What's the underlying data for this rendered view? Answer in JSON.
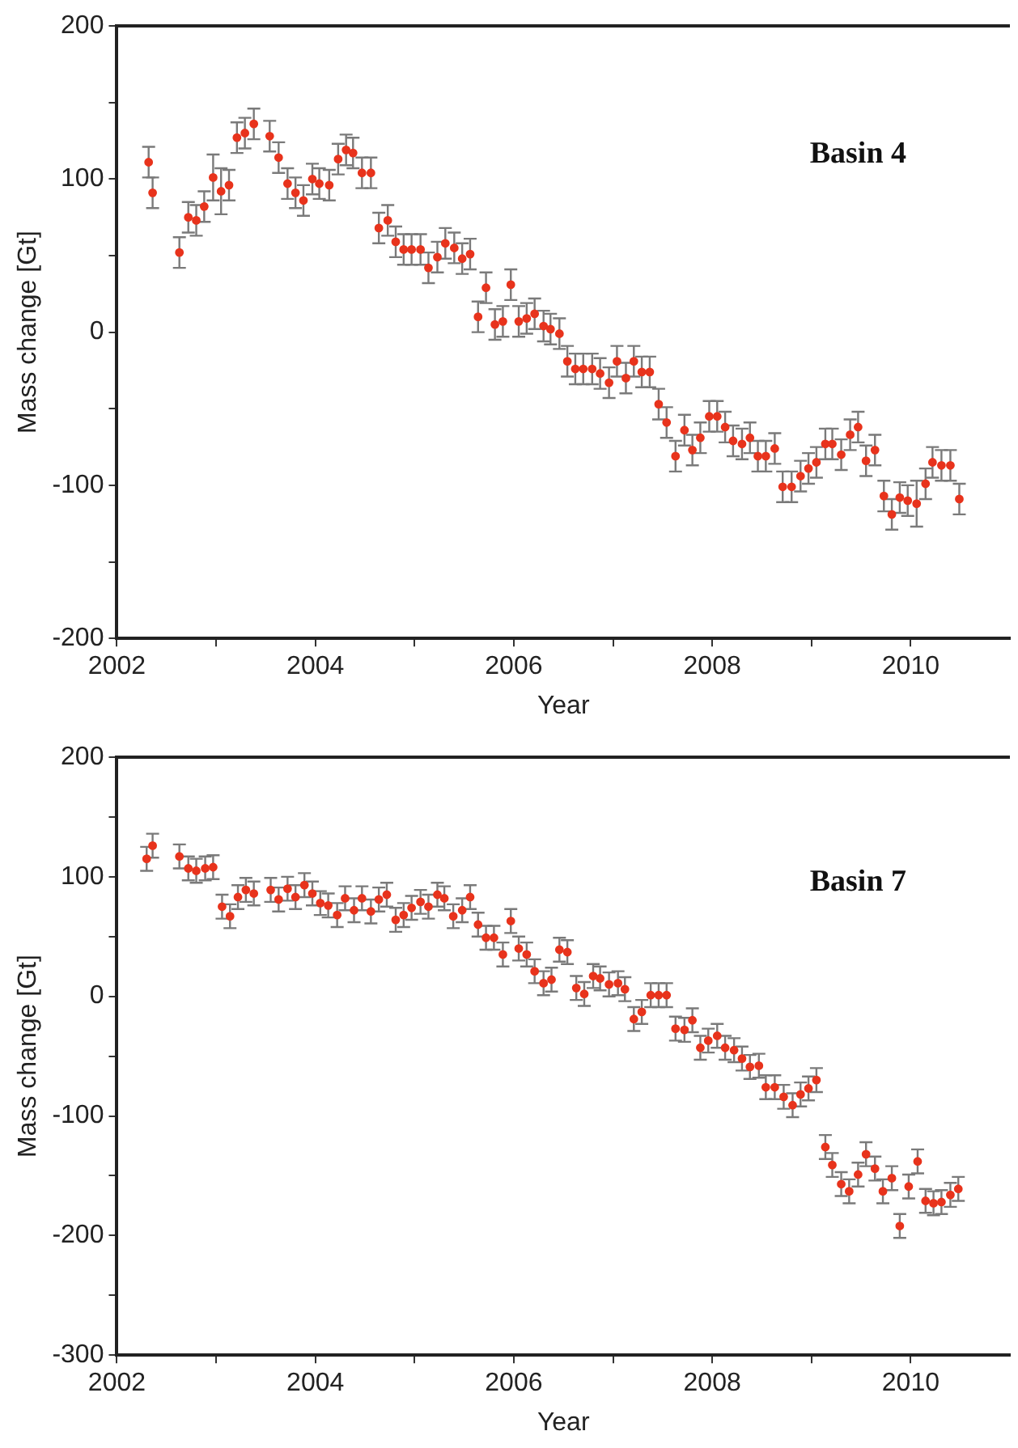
{
  "chart_data": [
    {
      "type": "scatter",
      "annotations": [
        "Basin 4"
      ],
      "xlabel": "Year",
      "ylabel": "Mass change [Gt]",
      "color": "#e8331c",
      "marker": "circle",
      "xlim": [
        2002,
        2011
      ],
      "xticks": [
        2002,
        {
          "value": 2003,
          "label": null
        },
        2004,
        {
          "value": 2005,
          "label": null
        },
        2006,
        {
          "value": 2007,
          "label": null
        },
        2008,
        {
          "value": 2009,
          "label": null
        },
        2010
      ],
      "ylim": [
        -200,
        200
      ],
      "yticks": [
        -200,
        {
          "value": -150,
          "label": null
        },
        -100,
        {
          "value": -50,
          "label": null
        },
        0,
        {
          "value": 50,
          "label": null
        },
        100,
        {
          "value": 150,
          "label": null
        },
        200
      ],
      "x": [
        2002.32,
        2002.36,
        2002.63,
        2002.72,
        2002.8,
        2002.88,
        2002.97,
        2003.05,
        2003.13,
        2003.21,
        2003.29,
        2003.38,
        2003.54,
        2003.63,
        2003.72,
        2003.8,
        2003.88,
        2003.97,
        2004.04,
        2004.14,
        2004.23,
        2004.31,
        2004.38,
        2004.47,
        2004.56,
        2004.64,
        2004.73,
        2004.81,
        2004.89,
        2004.97,
        2005.06,
        2005.14,
        2005.23,
        2005.31,
        2005.4,
        2005.48,
        2005.56,
        2005.64,
        2005.72,
        2005.81,
        2005.89,
        2005.97,
        2006.05,
        2006.13,
        2006.21,
        2006.3,
        2006.37,
        2006.46,
        2006.54,
        2006.62,
        2006.7,
        2006.79,
        2006.87,
        2006.96,
        2007.04,
        2007.13,
        2007.21,
        2007.29,
        2007.37,
        2007.46,
        2007.54,
        2007.63,
        2007.72,
        2007.8,
        2007.88,
        2007.97,
        2008.05,
        2008.13,
        2008.21,
        2008.3,
        2008.38,
        2008.46,
        2008.54,
        2008.63,
        2008.71,
        2008.8,
        2008.89,
        2008.97,
        2009.05,
        2009.14,
        2009.21,
        2009.3,
        2009.39,
        2009.47,
        2009.55,
        2009.64,
        2009.73,
        2009.81,
        2009.89,
        2009.97,
        2010.06,
        2010.15,
        2010.22,
        2010.31,
        2010.4,
        2010.49
      ],
      "values": [
        111,
        91,
        52,
        75,
        73,
        82,
        101,
        92,
        96,
        127,
        130,
        136,
        128,
        114,
        97,
        91,
        86,
        100,
        97,
        96,
        113,
        119,
        117,
        104,
        104,
        68,
        73,
        59,
        54,
        54,
        54,
        42,
        49,
        58,
        55,
        48,
        51,
        10,
        29,
        5,
        7,
        31,
        7,
        9,
        12,
        4,
        2,
        -1,
        -19,
        -24,
        -24,
        -24,
        -27,
        -33,
        -19,
        -30,
        -19,
        -26,
        -26,
        -47,
        -59,
        -81,
        -64,
        -77,
        -69,
        -55,
        -55,
        -62,
        -71,
        -73,
        -69,
        -81,
        -81,
        -76,
        -101,
        -101,
        -94,
        -89,
        -85,
        -73,
        -73,
        -80,
        -67,
        -62,
        -84,
        -77,
        -107,
        -119,
        -108,
        -110,
        -112,
        -99,
        -85,
        -87,
        -87,
        -109
      ],
      "errors": [
        10,
        10,
        10,
        10,
        10,
        10,
        15,
        15,
        10,
        10,
        10,
        10,
        10,
        10,
        10,
        10,
        10,
        10,
        10,
        10,
        10,
        10,
        10,
        10,
        10,
        10,
        10,
        10,
        10,
        10,
        10,
        10,
        10,
        10,
        10,
        10,
        10,
        10,
        10,
        10,
        10,
        10,
        10,
        10,
        10,
        10,
        10,
        10,
        10,
        10,
        10,
        10,
        10,
        10,
        10,
        10,
        10,
        10,
        10,
        10,
        10,
        10,
        10,
        10,
        10,
        10,
        10,
        10,
        10,
        10,
        10,
        10,
        10,
        10,
        10,
        10,
        10,
        10,
        10,
        10,
        10,
        10,
        10,
        10,
        10,
        10,
        10,
        10,
        10,
        10,
        15,
        10,
        10,
        10,
        10,
        10
      ]
    },
    {
      "type": "scatter",
      "annotations": [
        "Basin 7"
      ],
      "xlabel": "Year",
      "ylabel": "Mass change [Gt]",
      "color": "#e8331c",
      "marker": "circle",
      "xlim": [
        2002,
        2011
      ],
      "xticks": [
        2002,
        {
          "value": 2003,
          "label": null
        },
        2004,
        {
          "value": 2005,
          "label": null
        },
        2006,
        {
          "value": 2007,
          "label": null
        },
        2008,
        {
          "value": 2009,
          "label": null
        },
        2010
      ],
      "ylim": [
        -300,
        200
      ],
      "yticks": [
        -300,
        {
          "value": -250,
          "label": null
        },
        -200,
        {
          "value": -150,
          "label": null
        },
        -100,
        {
          "value": -50,
          "label": null
        },
        0,
        {
          "value": 50,
          "label": null
        },
        100,
        {
          "value": 150,
          "label": null
        },
        200
      ],
      "x": [
        2002.3,
        2002.36,
        2002.63,
        2002.72,
        2002.8,
        2002.89,
        2002.97,
        2003.06,
        2003.14,
        2003.22,
        2003.3,
        2003.38,
        2003.55,
        2003.63,
        2003.72,
        2003.8,
        2003.89,
        2003.97,
        2004.05,
        2004.13,
        2004.22,
        2004.3,
        2004.39,
        2004.47,
        2004.56,
        2004.64,
        2004.72,
        2004.81,
        2004.89,
        2004.97,
        2005.06,
        2005.14,
        2005.23,
        2005.3,
        2005.39,
        2005.48,
        2005.56,
        2005.64,
        2005.72,
        2005.8,
        2005.89,
        2005.97,
        2006.05,
        2006.13,
        2006.21,
        2006.3,
        2006.38,
        2006.46,
        2006.54,
        2006.63,
        2006.71,
        2006.8,
        2006.87,
        2006.96,
        2007.05,
        2007.12,
        2007.21,
        2007.29,
        2007.38,
        2007.46,
        2007.54,
        2007.63,
        2007.72,
        2007.8,
        2007.88,
        2007.96,
        2008.05,
        2008.13,
        2008.22,
        2008.3,
        2008.38,
        2008.47,
        2008.54,
        2008.63,
        2008.72,
        2008.81,
        2008.89,
        2008.97,
        2009.05,
        2009.14,
        2009.21,
        2009.3,
        2009.38,
        2009.47,
        2009.55,
        2009.64,
        2009.72,
        2009.81,
        2009.89,
        2009.98,
        2010.07,
        2010.15,
        2010.23,
        2010.31,
        2010.4,
        2010.48
      ],
      "values": [
        115,
        126,
        117,
        107,
        105,
        107,
        108,
        75,
        67,
        83,
        89,
        86,
        89,
        81,
        90,
        83,
        93,
        86,
        78,
        76,
        68,
        82,
        72,
        82,
        71,
        81,
        85,
        64,
        68,
        74,
        79,
        75,
        85,
        82,
        67,
        72,
        83,
        60,
        49,
        49,
        35,
        63,
        40,
        35,
        21,
        11,
        14,
        39,
        37,
        7,
        2,
        17,
        15,
        10,
        11,
        6,
        -19,
        -13,
        1,
        1,
        1,
        -27,
        -28,
        -20,
        -43,
        -37,
        -33,
        -43,
        -45,
        -52,
        -59,
        -58,
        -76,
        -76,
        -84,
        -91,
        -82,
        -77,
        -70,
        -126,
        -141,
        -157,
        -163,
        -149,
        -132,
        -144,
        -163,
        -152,
        -192,
        -159,
        -138,
        -171,
        -173,
        -172,
        -166,
        -161
      ],
      "errors": [
        10,
        10,
        10,
        10,
        10,
        10,
        10,
        10,
        10,
        10,
        10,
        10,
        10,
        10,
        10,
        10,
        10,
        10,
        10,
        10,
        10,
        10,
        10,
        10,
        10,
        10,
        10,
        10,
        10,
        10,
        10,
        10,
        10,
        10,
        10,
        10,
        10,
        10,
        10,
        10,
        10,
        10,
        10,
        10,
        10,
        10,
        10,
        10,
        10,
        10,
        10,
        10,
        10,
        10,
        10,
        10,
        10,
        10,
        10,
        10,
        10,
        10,
        10,
        10,
        10,
        10,
        10,
        10,
        10,
        10,
        10,
        10,
        10,
        10,
        10,
        10,
        10,
        10,
        10,
        10,
        10,
        10,
        10,
        10,
        10,
        10,
        10,
        10,
        10,
        10,
        10,
        10,
        10,
        10,
        10,
        10
      ]
    }
  ]
}
